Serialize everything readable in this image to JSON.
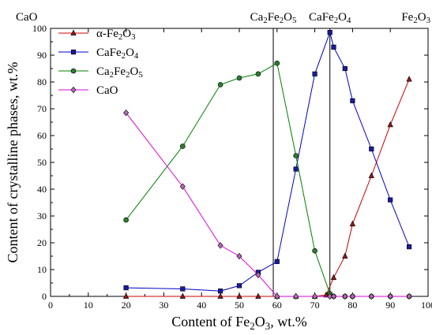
{
  "chart_data": {
    "type": "line",
    "xlabel": "Content of Fe₂O₃, wt.%",
    "ylabel": "Content of crystalline phases, wt.%",
    "xlim": [
      0,
      100
    ],
    "ylim": [
      0,
      100
    ],
    "x_ticks": [
      0,
      10,
      20,
      30,
      40,
      50,
      60,
      70,
      80,
      90,
      100
    ],
    "y_ticks": [
      0,
      10,
      20,
      30,
      40,
      50,
      60,
      70,
      80,
      90,
      100
    ],
    "grid": false,
    "legend_position": "top-left",
    "top_labels": [
      {
        "text": "CaO",
        "anchor": "top-left"
      },
      {
        "text": "Ca₂Fe₂O₅",
        "at_x": 59
      },
      {
        "text": "CaFe₂O₄",
        "at_x": 74
      },
      {
        "text": "Fe₂O₃",
        "anchor": "top-right"
      }
    ],
    "reference_lines_x": [
      59,
      74
    ],
    "series": [
      {
        "name": "α-Fe₂O₃",
        "color": "#cc0000",
        "marker": "triangle",
        "x": [
          20,
          35,
          45,
          50,
          55,
          60,
          65,
          70,
          73,
          75,
          78,
          80,
          85,
          90,
          95
        ],
        "y": [
          0,
          0,
          0,
          0,
          0,
          0,
          0,
          0,
          0.5,
          7,
          15,
          27,
          45,
          64,
          81
        ]
      },
      {
        "name": "CaFe₂O₄",
        "color": "#0000cc",
        "marker": "square",
        "x": [
          20,
          35,
          45,
          50,
          55,
          60,
          65,
          70,
          74,
          75,
          78,
          80,
          85,
          90,
          95
        ],
        "y": [
          3.2,
          2.8,
          2,
          4,
          9,
          13,
          47.5,
          83,
          98.5,
          93,
          85,
          73,
          55,
          36,
          18.5
        ]
      },
      {
        "name": "Ca₂Fe₂O₅",
        "color": "#008000",
        "marker": "circle",
        "x": [
          20,
          35,
          45,
          50,
          55,
          60,
          65,
          70,
          74,
          75,
          78,
          80,
          85,
          90,
          95
        ],
        "y": [
          28.5,
          56,
          79,
          81.5,
          83,
          87,
          52.5,
          17,
          1,
          0,
          0,
          0,
          0,
          0,
          0
        ]
      },
      {
        "name": "CaO",
        "color": "#e000e0",
        "marker": "diamond",
        "x": [
          20,
          35,
          45,
          50,
          55,
          60,
          65,
          70,
          74,
          75,
          78,
          80,
          85,
          90,
          95
        ],
        "y": [
          68.5,
          41,
          19,
          15,
          8,
          0,
          0,
          0,
          0,
          0,
          0,
          0,
          0,
          0,
          0
        ]
      }
    ]
  }
}
